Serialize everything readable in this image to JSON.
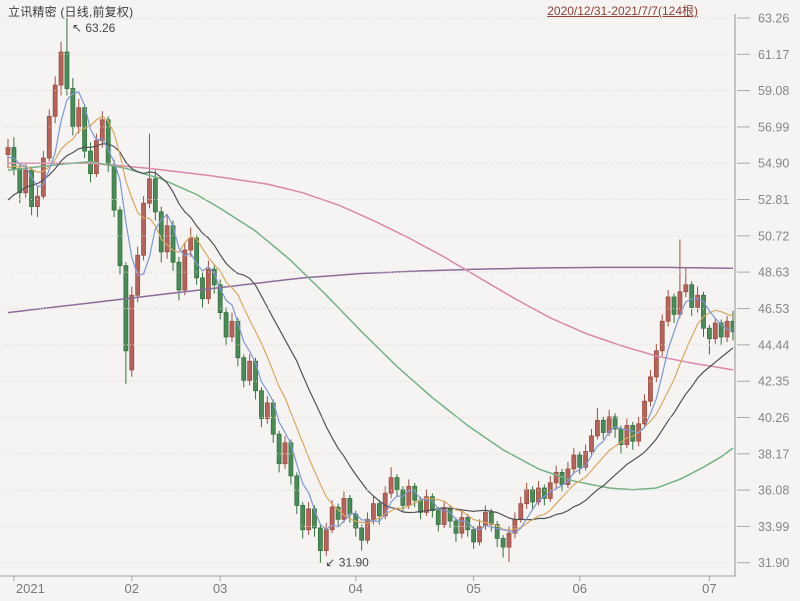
{
  "header": {
    "title": "立讯精密 (日线,前复权)",
    "period_link": "2020/12/31-2021/7/7(124根)"
  },
  "chart_data": {
    "type": "candlestick",
    "instrument": "立讯精密",
    "timeframe": "日线,前复权",
    "period": "2020/12/31-2021/7/7",
    "bar_count": 124,
    "y_axis": {
      "labels": [
        "63.26",
        "61.17",
        "59.08",
        "56.99",
        "54.90",
        "52.81",
        "50.72",
        "48.63",
        "46.53",
        "44.44",
        "42.35",
        "40.26",
        "38.17",
        "36.08",
        "33.99",
        "31.90"
      ],
      "top_value": 63.26,
      "step_value": 2.09,
      "grid": "dotted"
    },
    "x_axis": {
      "ticks": [
        {
          "label": "2021",
          "bar": 1,
          "align": "left"
        },
        {
          "label": "02",
          "bar": 21
        },
        {
          "label": "03",
          "bar": 36
        },
        {
          "label": "04",
          "bar": 59
        },
        {
          "label": "05",
          "bar": 79
        },
        {
          "label": "06",
          "bar": 97
        },
        {
          "label": "07",
          "bar": 119
        }
      ]
    },
    "annotations": [
      {
        "name": "high-label",
        "arrow": "↖",
        "text": "63.26",
        "bar": 10,
        "price": 63.26,
        "dir": "up"
      },
      {
        "name": "low-label",
        "arrow": "↙",
        "text": "31.90",
        "bar": 53,
        "price": 31.9,
        "dir": "down"
      }
    ],
    "colors": {
      "up_fill": "#b2655b",
      "up_stroke": "#9c4f43",
      "down_fill": "#4d8a59",
      "down_stroke": "#35713f",
      "ma5": "#7f96cf",
      "ma10": "#d8a763",
      "ma20": "#52525a",
      "ma60": "#75b184",
      "ma120": "#d788ab",
      "ma250": "#8d6c9c",
      "grid": "#dcd3d3",
      "axis": "#b5b5b5",
      "tick": "#a8a8a8"
    },
    "ma_seed_closes": [
      48.0,
      48.6,
      49.2,
      49.8,
      50.3,
      50.8,
      51.2,
      51.7,
      52.2,
      52.6,
      53.0,
      53.4,
      53.7,
      54.0,
      54.3,
      54.6,
      54.8,
      55.0,
      55.2,
      55.4
    ],
    "ohlc": [
      [
        55.4,
        56.3,
        54.6,
        55.8
      ],
      [
        55.8,
        56.4,
        54.2,
        54.6
      ],
      [
        54.6,
        54.9,
        52.6,
        53.2
      ],
      [
        53.2,
        54.9,
        52.9,
        54.5
      ],
      [
        54.5,
        54.7,
        51.9,
        52.4
      ],
      [
        52.4,
        53.6,
        51.8,
        53.0
      ],
      [
        53.0,
        55.6,
        52.8,
        55.2
      ],
      [
        55.2,
        58.0,
        55.0,
        57.6
      ],
      [
        57.6,
        59.9,
        57.2,
        59.4
      ],
      [
        59.4,
        61.9,
        58.8,
        61.3
      ],
      [
        61.3,
        63.26,
        58.8,
        59.2
      ],
      [
        59.2,
        59.8,
        56.5,
        57.0
      ],
      [
        57.0,
        58.6,
        56.6,
        58.1
      ],
      [
        58.1,
        58.3,
        55.2,
        55.6
      ],
      [
        55.6,
        56.1,
        53.8,
        54.3
      ],
      [
        54.3,
        56.6,
        54.1,
        56.2
      ],
      [
        56.2,
        57.9,
        55.8,
        57.4
      ],
      [
        57.4,
        57.6,
        54.4,
        54.8
      ],
      [
        54.8,
        55.1,
        51.8,
        52.2
      ],
      [
        52.2,
        52.4,
        48.5,
        49.0
      ],
      [
        49.0,
        49.2,
        42.2,
        44.1
      ],
      [
        43.0,
        47.8,
        42.6,
        47.3
      ],
      [
        47.3,
        50.1,
        46.9,
        49.6
      ],
      [
        49.6,
        53.0,
        49.3,
        52.6
      ],
      [
        52.6,
        56.6,
        52.3,
        54.0
      ],
      [
        54.0,
        54.5,
        51.6,
        52.1
      ],
      [
        52.1,
        52.4,
        49.2,
        49.8
      ],
      [
        49.8,
        51.9,
        49.4,
        51.3
      ],
      [
        51.3,
        51.6,
        48.7,
        49.2
      ],
      [
        49.2,
        49.5,
        47.0,
        47.6
      ],
      [
        47.6,
        50.3,
        47.3,
        49.9
      ],
      [
        49.9,
        51.2,
        49.5,
        50.6
      ],
      [
        50.6,
        50.8,
        47.9,
        48.3
      ],
      [
        48.3,
        48.6,
        46.6,
        47.1
      ],
      [
        47.1,
        49.3,
        46.8,
        48.8
      ],
      [
        48.8,
        49.1,
        47.4,
        47.9
      ],
      [
        47.9,
        48.2,
        45.9,
        46.3
      ],
      [
        46.3,
        46.6,
        44.4,
        44.9
      ],
      [
        44.9,
        46.3,
        44.6,
        45.8
      ],
      [
        45.8,
        46.0,
        43.2,
        43.7
      ],
      [
        43.7,
        43.9,
        42.0,
        42.4
      ],
      [
        42.4,
        43.9,
        42.1,
        43.5
      ],
      [
        43.5,
        43.7,
        41.3,
        41.8
      ],
      [
        41.8,
        42.0,
        39.7,
        40.2
      ],
      [
        40.2,
        41.5,
        39.9,
        41.1
      ],
      [
        41.1,
        41.3,
        38.8,
        39.3
      ],
      [
        39.3,
        39.5,
        37.1,
        37.6
      ],
      [
        37.6,
        39.2,
        37.3,
        38.8
      ],
      [
        38.8,
        39.0,
        36.4,
        36.9
      ],
      [
        36.9,
        37.1,
        34.7,
        35.2
      ],
      [
        35.2,
        35.4,
        33.3,
        33.8
      ],
      [
        33.8,
        35.4,
        33.5,
        35.0
      ],
      [
        35.0,
        35.2,
        33.4,
        33.9
      ],
      [
        33.9,
        34.1,
        31.9,
        32.6
      ],
      [
        32.6,
        34.2,
        32.3,
        33.8
      ],
      [
        33.8,
        35.5,
        33.6,
        35.1
      ],
      [
        35.1,
        35.3,
        34.0,
        34.4
      ],
      [
        34.4,
        36.0,
        34.2,
        35.6
      ],
      [
        35.6,
        35.8,
        34.2,
        34.7
      ],
      [
        34.7,
        34.9,
        33.4,
        33.9
      ],
      [
        33.9,
        34.1,
        32.6,
        33.2
      ],
      [
        33.2,
        34.8,
        33.0,
        34.4
      ],
      [
        34.4,
        35.7,
        34.1,
        35.3
      ],
      [
        35.3,
        35.5,
        34.1,
        34.6
      ],
      [
        34.6,
        36.3,
        34.4,
        35.9
      ],
      [
        35.9,
        37.4,
        35.6,
        36.8
      ],
      [
        36.8,
        37.0,
        35.7,
        36.1
      ],
      [
        36.1,
        36.3,
        34.8,
        35.2
      ],
      [
        35.2,
        36.7,
        35.0,
        36.3
      ],
      [
        36.3,
        36.5,
        35.1,
        35.5
      ],
      [
        35.5,
        35.7,
        34.4,
        34.8
      ],
      [
        34.8,
        36.1,
        34.6,
        35.7
      ],
      [
        35.7,
        35.9,
        34.5,
        34.9
      ],
      [
        34.9,
        35.1,
        33.7,
        34.1
      ],
      [
        34.1,
        35.4,
        33.9,
        35.0
      ],
      [
        35.0,
        35.2,
        33.9,
        34.3
      ],
      [
        34.3,
        34.5,
        33.1,
        33.6
      ],
      [
        33.6,
        34.9,
        33.3,
        34.5
      ],
      [
        34.5,
        34.7,
        33.4,
        33.8
      ],
      [
        33.8,
        34.0,
        32.7,
        33.1
      ],
      [
        33.1,
        34.4,
        32.9,
        34.0
      ],
      [
        34.0,
        35.2,
        33.8,
        34.8
      ],
      [
        34.8,
        35.0,
        33.7,
        34.1
      ],
      [
        34.1,
        34.3,
        32.8,
        33.3
      ],
      [
        33.3,
        33.5,
        32.2,
        32.8
      ],
      [
        32.8,
        34.0,
        31.95,
        33.6
      ],
      [
        33.6,
        34.8,
        33.3,
        34.4
      ],
      [
        34.4,
        35.7,
        34.2,
        35.3
      ],
      [
        35.3,
        36.5,
        35.0,
        36.1
      ],
      [
        36.1,
        36.3,
        35.0,
        35.4
      ],
      [
        35.4,
        36.6,
        35.2,
        36.2
      ],
      [
        36.2,
        36.4,
        35.2,
        35.6
      ],
      [
        35.6,
        36.9,
        35.4,
        36.5
      ],
      [
        36.5,
        37.5,
        36.2,
        37.1
      ],
      [
        37.1,
        37.3,
        36.0,
        36.4
      ],
      [
        36.4,
        37.7,
        36.2,
        37.3
      ],
      [
        37.3,
        38.5,
        37.0,
        38.1
      ],
      [
        38.1,
        38.3,
        37.0,
        37.4
      ],
      [
        37.4,
        38.7,
        37.2,
        38.3
      ],
      [
        38.3,
        39.6,
        38.0,
        39.2
      ],
      [
        39.2,
        40.8,
        39.0,
        40.1
      ],
      [
        40.1,
        40.3,
        39.0,
        39.4
      ],
      [
        39.4,
        40.7,
        39.2,
        40.3
      ],
      [
        40.3,
        40.5,
        39.1,
        39.6
      ],
      [
        39.6,
        39.8,
        38.2,
        38.7
      ],
      [
        38.7,
        40.2,
        38.5,
        39.8
      ],
      [
        39.8,
        40.0,
        38.4,
        38.9
      ],
      [
        38.9,
        40.3,
        38.6,
        39.9
      ],
      [
        39.9,
        41.6,
        39.7,
        41.2
      ],
      [
        41.2,
        43.0,
        40.9,
        42.6
      ],
      [
        42.6,
        44.5,
        42.3,
        44.1
      ],
      [
        44.1,
        46.2,
        43.8,
        45.8
      ],
      [
        45.8,
        47.6,
        45.5,
        47.2
      ],
      [
        47.2,
        47.4,
        45.7,
        46.2
      ],
      [
        46.2,
        50.51,
        46.0,
        47.5
      ],
      [
        47.5,
        48.9,
        47.2,
        47.9
      ],
      [
        47.9,
        48.1,
        46.1,
        46.6
      ],
      [
        46.6,
        47.8,
        46.3,
        47.3
      ],
      [
        47.3,
        47.5,
        44.9,
        45.4
      ],
      [
        45.4,
        45.6,
        43.9,
        44.8
      ],
      [
        44.8,
        46.0,
        44.5,
        45.7
      ],
      [
        45.7,
        45.9,
        44.4,
        44.9
      ],
      [
        44.9,
        46.1,
        44.6,
        45.8
      ],
      [
        45.8,
        46.4,
        44.7,
        45.2
      ]
    ],
    "overlays": [
      {
        "name": "ma60",
        "color_key": "ma60",
        "points": [
          [
            0,
            54.5
          ],
          [
            8,
            54.8
          ],
          [
            14,
            55.0
          ],
          [
            20,
            54.6
          ],
          [
            26,
            54.0
          ],
          [
            32,
            53.1
          ],
          [
            36,
            52.3
          ],
          [
            42,
            51.0
          ],
          [
            48,
            49.3
          ],
          [
            54,
            47.3
          ],
          [
            60,
            45.2
          ],
          [
            66,
            43.2
          ],
          [
            72,
            41.4
          ],
          [
            78,
            39.8
          ],
          [
            84,
            38.4
          ],
          [
            90,
            37.3
          ],
          [
            96,
            36.6
          ],
          [
            102,
            36.2
          ],
          [
            106,
            36.1
          ],
          [
            110,
            36.2
          ],
          [
            114,
            36.7
          ],
          [
            118,
            37.4
          ],
          [
            121,
            38.0
          ],
          [
            123,
            38.5
          ]
        ]
      },
      {
        "name": "ma120",
        "color_key": "ma120",
        "points": [
          [
            0,
            54.9
          ],
          [
            14,
            54.9
          ],
          [
            24,
            54.6
          ],
          [
            34,
            54.2
          ],
          [
            44,
            53.7
          ],
          [
            50,
            53.2
          ],
          [
            56,
            52.5
          ],
          [
            62,
            51.6
          ],
          [
            68,
            50.6
          ],
          [
            74,
            49.5
          ],
          [
            80,
            48.3
          ],
          [
            86,
            47.1
          ],
          [
            92,
            46.0
          ],
          [
            98,
            45.1
          ],
          [
            104,
            44.4
          ],
          [
            110,
            43.8
          ],
          [
            116,
            43.4
          ],
          [
            123,
            43.0
          ]
        ]
      },
      {
        "name": "ma250",
        "color_key": "ma250",
        "points": [
          [
            0,
            46.3
          ],
          [
            20,
            47.1
          ],
          [
            40,
            47.9
          ],
          [
            50,
            48.3
          ],
          [
            60,
            48.55
          ],
          [
            70,
            48.7
          ],
          [
            80,
            48.8
          ],
          [
            90,
            48.87
          ],
          [
            100,
            48.9
          ],
          [
            112,
            48.9
          ],
          [
            123,
            48.85
          ]
        ]
      }
    ]
  }
}
